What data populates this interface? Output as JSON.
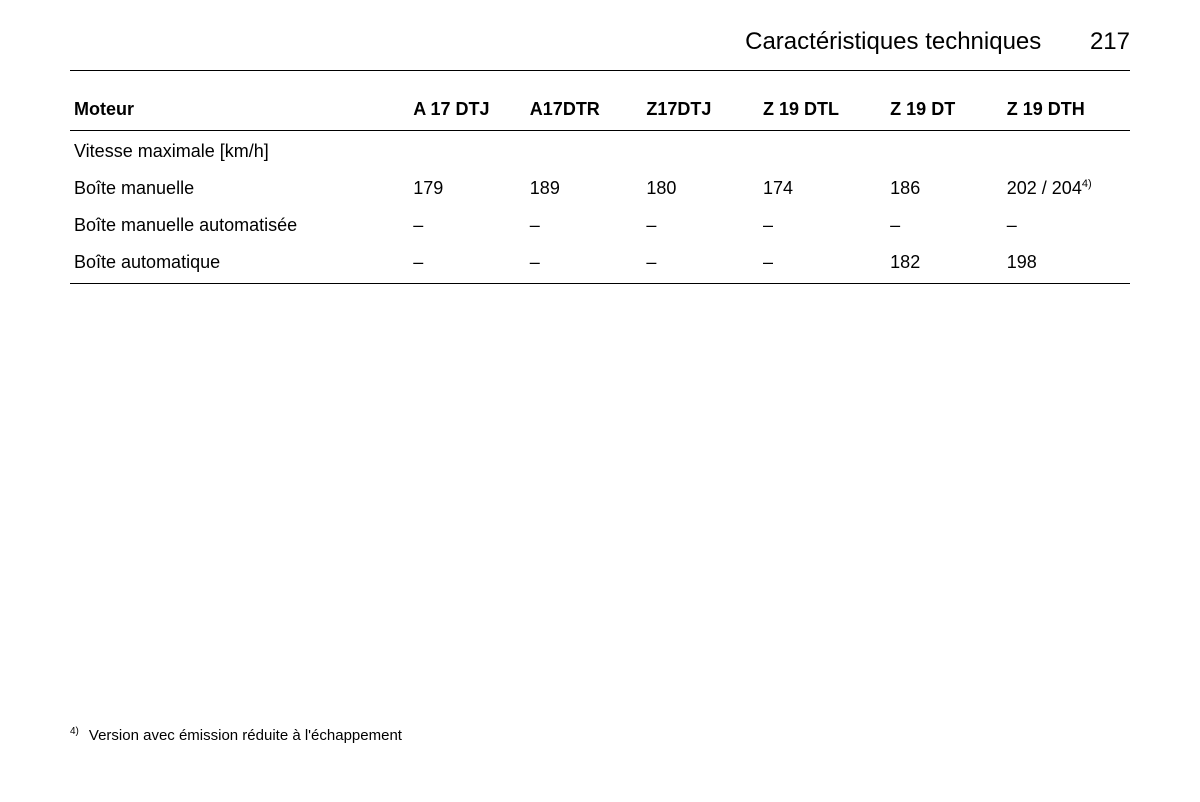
{
  "header": {
    "section_title": "Caractéristiques techniques",
    "page_number": "217"
  },
  "table": {
    "columns": [
      "Moteur",
      "A 17 DTJ",
      "A17DTR",
      "Z17DTJ",
      "Z 19 DTL",
      "Z 19 DT",
      "Z 19 DTH"
    ],
    "subheading": "Vitesse maximale [km/h]",
    "rows": [
      {
        "label": "Boîte manuelle",
        "values": [
          "179",
          "189",
          "180",
          "174",
          "186",
          "202 / 204"
        ],
        "sup_last": "4)"
      },
      {
        "label": "Boîte manuelle automatisée",
        "values": [
          "–",
          "–",
          "–",
          "–",
          "–",
          "–"
        ]
      },
      {
        "label": "Boîte automatique",
        "values": [
          "–",
          "–",
          "–",
          "–",
          "182",
          "198"
        ]
      }
    ]
  },
  "footnote": {
    "marker": "4)",
    "text": "Version avec émission réduite à l'échappement"
  }
}
